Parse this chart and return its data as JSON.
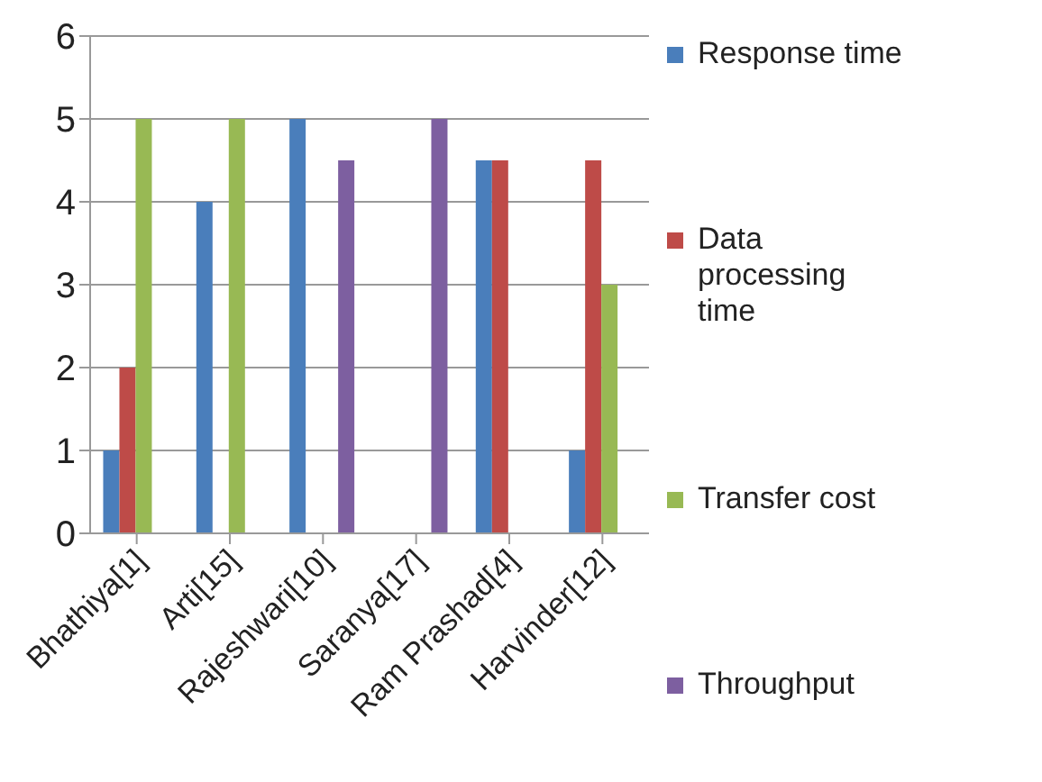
{
  "chart_data": {
    "type": "bar",
    "categories": [
      "Bhathiya[1]",
      "Arti[15]",
      "Rajeshwari[10]",
      "Saranya[17]",
      "Ram Prashad[4]",
      "Harvinder[12]"
    ],
    "series": [
      {
        "name": "Response time",
        "color": "#4a7ebb",
        "values": [
          1,
          4,
          5,
          null,
          4.5,
          1
        ]
      },
      {
        "name": "Data processing time",
        "color": "#be4b48",
        "values": [
          2,
          null,
          null,
          null,
          4.5,
          4.5
        ]
      },
      {
        "name": "Transfer cost",
        "color": "#98b954",
        "values": [
          5,
          5,
          null,
          null,
          null,
          3
        ]
      },
      {
        "name": "Throughput",
        "color": "#7d5fa0",
        "values": [
          null,
          null,
          4.5,
          5,
          null,
          null
        ]
      }
    ],
    "ylim": [
      0,
      6
    ],
    "yticks": [
      0,
      1,
      2,
      3,
      4,
      5,
      6
    ],
    "grid": "y",
    "legend": "right"
  }
}
